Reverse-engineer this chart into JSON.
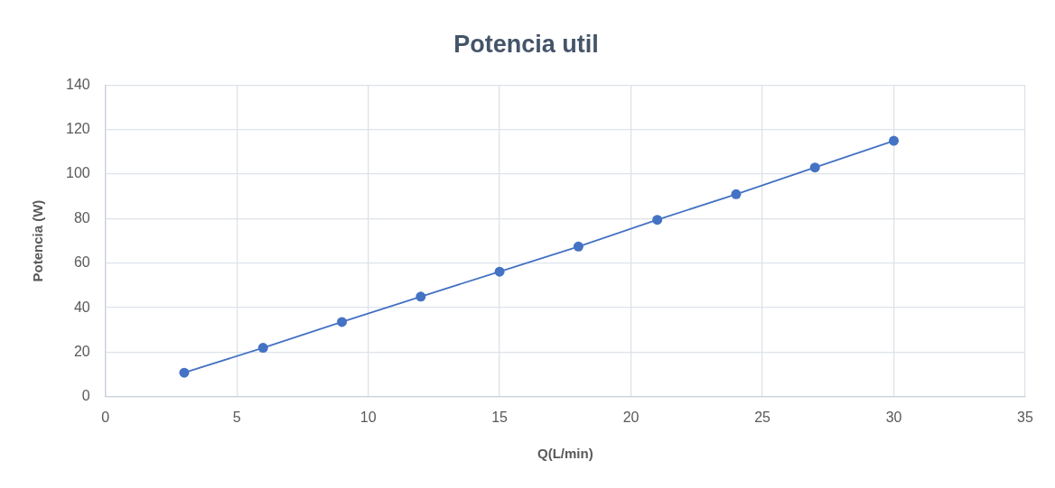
{
  "chart_data": {
    "type": "line",
    "title": "Potencia util",
    "xlabel": "Q(L/min)",
    "ylabel": "Potencia (W)",
    "x": [
      3,
      6,
      9,
      12,
      15,
      18,
      21,
      24,
      27,
      30
    ],
    "series": [
      {
        "color": "#4472c4",
        "values": [
          10.8,
          22,
          33.6,
          45,
          56.2,
          67.5,
          79.5,
          91,
          103,
          115
        ]
      }
    ],
    "xlim": [
      0,
      35
    ],
    "xticks": [
      0,
      5,
      10,
      15,
      20,
      25,
      30,
      35
    ],
    "ylim": [
      0,
      140
    ],
    "yticks": [
      0,
      20,
      40,
      60,
      80,
      100,
      120,
      140
    ],
    "grid": true,
    "marker": "circle",
    "line_style": "solid"
  }
}
